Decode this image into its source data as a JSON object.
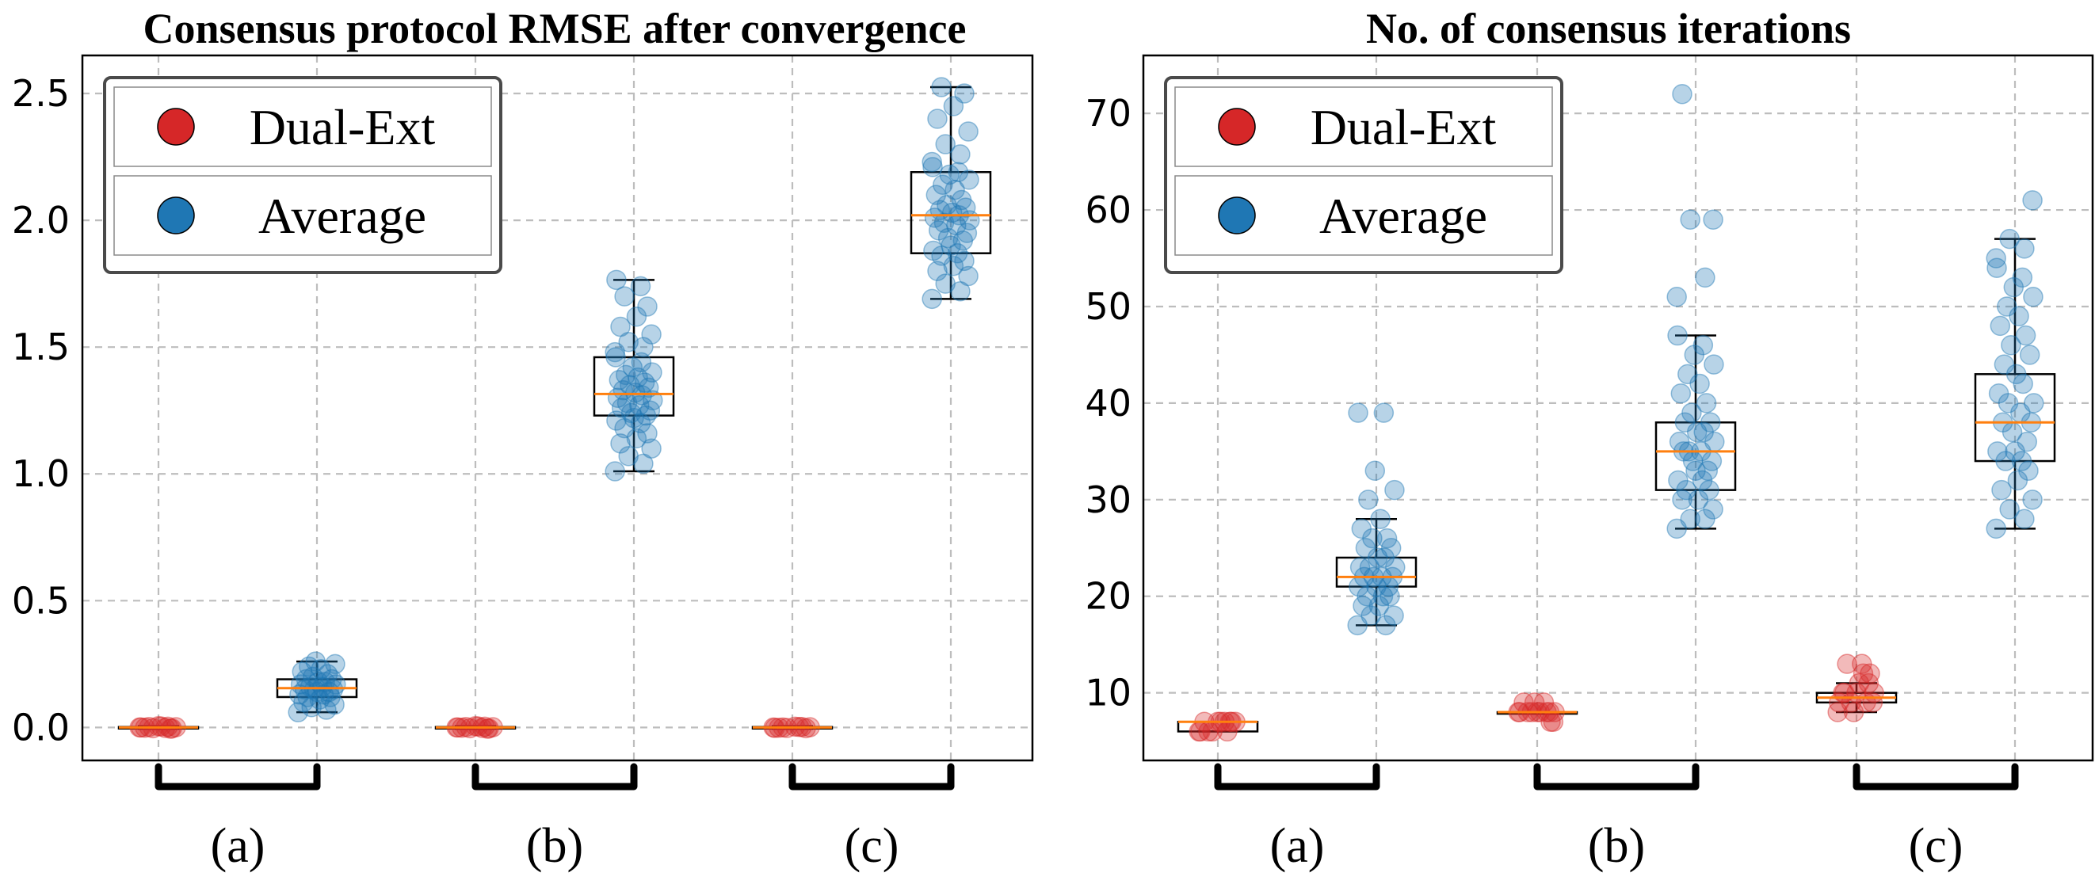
{
  "chart_data": [
    {
      "type": "box",
      "title": "Consensus protocol RMSE after convergence",
      "xlabel": "",
      "ylabel": "",
      "ylim": [
        -0.13,
        2.65
      ],
      "yticks": [
        0.0,
        0.5,
        1.0,
        1.5,
        2.0,
        2.5
      ],
      "ytick_labels": [
        "0.0",
        "0.5",
        "1.0",
        "1.5",
        "2.0",
        "2.5"
      ],
      "grid": true,
      "legend": {
        "placement": "top-left",
        "entries": [
          "Dual-Ext",
          "Average"
        ]
      },
      "categories": [
        "(a)",
        "(b)",
        "(c)"
      ],
      "series": [
        {
          "name": "Dual-Ext",
          "color": "#d62728",
          "boxes": [
            {
              "category": "(a)",
              "min": -0.005,
              "q1": -0.002,
              "median": 0.0,
              "q3": 0.002,
              "max": 0.005
            },
            {
              "category": "(b)",
              "min": -0.005,
              "q1": -0.002,
              "median": 0.0,
              "q3": 0.002,
              "max": 0.005
            },
            {
              "category": "(c)",
              "min": -0.005,
              "q1": -0.002,
              "median": 0.0,
              "q3": 0.002,
              "max": 0.005
            }
          ],
          "points": [
            [
              0.0,
              0.003,
              -0.003,
              0.001,
              -0.001,
              0.004,
              -0.004,
              0.002,
              -0.002,
              0.0,
              0.005,
              -0.005
            ],
            [
              0.0,
              0.003,
              -0.003,
              0.001,
              -0.001,
              0.004,
              -0.004,
              0.002,
              -0.002,
              0.0,
              0.005,
              -0.005
            ],
            [
              0.0,
              0.002,
              -0.002,
              0.001,
              -0.001,
              0.003,
              -0.003,
              0.0,
              0.002,
              -0.002
            ]
          ]
        },
        {
          "name": "Average",
          "color": "#1f77b4",
          "boxes": [
            {
              "category": "(a)",
              "min": 0.06,
              "q1": 0.12,
              "median": 0.155,
              "q3": 0.19,
              "max": 0.26
            },
            {
              "category": "(b)",
              "min": 1.01,
              "q1": 1.23,
              "median": 1.315,
              "q3": 1.46,
              "max": 1.765
            },
            {
              "category": "(c)",
              "min": 1.69,
              "q1": 1.87,
              "median": 2.02,
              "q3": 2.19,
              "max": 2.525
            }
          ],
          "points": [
            [
              0.06,
              0.07,
              0.08,
              0.09,
              0.1,
              0.11,
              0.12,
              0.12,
              0.13,
              0.13,
              0.14,
              0.14,
              0.15,
              0.15,
              0.15,
              0.16,
              0.16,
              0.17,
              0.17,
              0.18,
              0.18,
              0.19,
              0.19,
              0.2,
              0.21,
              0.22,
              0.23,
              0.24,
              0.25,
              0.26
            ],
            [
              1.01,
              1.04,
              1.07,
              1.1,
              1.12,
              1.14,
              1.16,
              1.18,
              1.2,
              1.21,
              1.22,
              1.23,
              1.24,
              1.25,
              1.26,
              1.27,
              1.28,
              1.29,
              1.3,
              1.31,
              1.32,
              1.33,
              1.34,
              1.35,
              1.36,
              1.37,
              1.38,
              1.39,
              1.4,
              1.42,
              1.44,
              1.46,
              1.48,
              1.5,
              1.52,
              1.55,
              1.58,
              1.62,
              1.66,
              1.7,
              1.74,
              1.765
            ],
            [
              1.69,
              1.72,
              1.75,
              1.78,
              1.8,
              1.82,
              1.84,
              1.86,
              1.87,
              1.88,
              1.9,
              1.92,
              1.93,
              1.95,
              1.96,
              1.98,
              1.99,
              2.0,
              2.01,
              2.02,
              2.03,
              2.04,
              2.05,
              2.06,
              2.08,
              2.1,
              2.12,
              2.14,
              2.16,
              2.18,
              2.19,
              2.21,
              2.23,
              2.26,
              2.3,
              2.35,
              2.4,
              2.45,
              2.5,
              2.525
            ]
          ]
        }
      ]
    },
    {
      "type": "box",
      "title": "No. of consensus iterations",
      "xlabel": "",
      "ylabel": "",
      "ylim": [
        3,
        76
      ],
      "yticks": [
        10,
        20,
        30,
        40,
        50,
        60,
        70
      ],
      "ytick_labels": [
        "10",
        "20",
        "30",
        "40",
        "50",
        "60",
        "70"
      ],
      "grid": true,
      "legend": {
        "placement": "top-left",
        "entries": [
          "Dual-Ext",
          "Average"
        ]
      },
      "categories": [
        "(a)",
        "(b)",
        "(c)"
      ],
      "series": [
        {
          "name": "Dual-Ext",
          "color": "#d62728",
          "boxes": [
            {
              "category": "(a)",
              "min": 6,
              "q1": 6,
              "median": 7,
              "q3": 7,
              "max": 7
            },
            {
              "category": "(b)",
              "min": 8,
              "q1": 8,
              "median": 8,
              "q3": 8,
              "max": 8
            },
            {
              "category": "(c)",
              "min": 8,
              "q1": 9,
              "median": 9.5,
              "q3": 10,
              "max": 11
            }
          ],
          "points": [
            [
              6,
              6,
              6,
              7,
              7,
              7,
              7,
              6,
              7,
              6,
              7,
              7
            ],
            [
              8,
              8,
              8,
              8,
              9,
              8,
              7,
              8,
              9,
              8,
              8,
              8,
              9,
              7
            ],
            [
              8,
              9,
              9,
              10,
              10,
              11,
              12,
              13,
              12,
              9,
              10,
              11,
              8,
              9,
              10,
              13
            ]
          ]
        },
        {
          "name": "Average",
          "color": "#1f77b4",
          "boxes": [
            {
              "category": "(a)",
              "min": 17,
              "q1": 21,
              "median": 22,
              "q3": 24,
              "max": 28
            },
            {
              "category": "(b)",
              "min": 27,
              "q1": 31,
              "median": 35,
              "q3": 38,
              "max": 47
            },
            {
              "category": "(c)",
              "min": 27,
              "q1": 34,
              "median": 38,
              "q3": 43,
              "max": 57
            }
          ],
          "points": [
            [
              17,
              17,
              18,
              18,
              19,
              19,
              20,
              20,
              20,
              21,
              21,
              21,
              22,
              22,
              22,
              22,
              23,
              23,
              23,
              24,
              24,
              25,
              25,
              26,
              26,
              27,
              28,
              30,
              31,
              33,
              39,
              39
            ],
            [
              27,
              28,
              28,
              29,
              30,
              30,
              31,
              31,
              32,
              32,
              33,
              33,
              34,
              34,
              35,
              35,
              35,
              36,
              36,
              37,
              37,
              38,
              38,
              39,
              40,
              41,
              42,
              43,
              44,
              45,
              46,
              47,
              51,
              53,
              59,
              59,
              72
            ],
            [
              27,
              28,
              29,
              30,
              31,
              32,
              33,
              34,
              34,
              35,
              35,
              36,
              37,
              38,
              38,
              39,
              40,
              40,
              41,
              42,
              43,
              44,
              45,
              46,
              47,
              48,
              49,
              50,
              51,
              52,
              53,
              54,
              55,
              56,
              57,
              61
            ]
          ]
        }
      ]
    }
  ]
}
